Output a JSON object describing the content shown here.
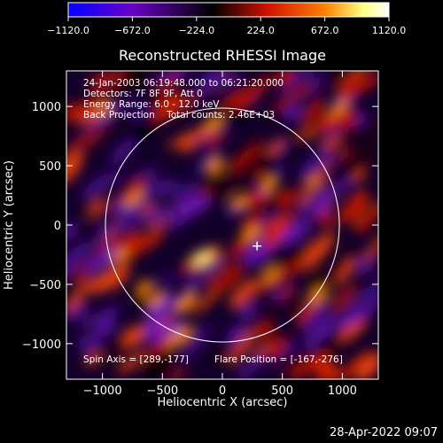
{
  "chart_data": {
    "type": "heatmap",
    "title": "Reconstructed RHESSI Image",
    "xlabel": "Heliocentric X (arcsec)",
    "ylabel": "Heliocentric Y (arcsec)",
    "xlim": [
      -1300,
      1300
    ],
    "ylim": [
      -1300,
      1300
    ],
    "x_ticks": [
      -1000,
      -500,
      0,
      500,
      1000
    ],
    "y_ticks": [
      -1000,
      -500,
      0,
      500,
      1000
    ],
    "x_tick_labels": [
      "−1000",
      "−500",
      "0",
      "500",
      "1000"
    ],
    "y_tick_labels": [
      "−1000",
      "−500",
      "0",
      "500",
      "1000"
    ],
    "colorbar": {
      "range": [
        -1120,
        1120
      ],
      "ticks": [
        -1120,
        -672,
        -224,
        224,
        672,
        1120
      ],
      "tick_labels": [
        "−1120.0",
        "−672.0",
        "−224.0",
        "224.0",
        "672.0",
        "1120.0"
      ],
      "colors": [
        "#0000ff",
        "#6a00c8",
        "#000000",
        "#d01000",
        "#ff8000",
        "#ffff80",
        "#ffffff"
      ]
    },
    "annotations": [
      "24-Jan-2003 06:19:48.000 to 06:21:20.000",
      "Detectors: 7F 8F 9F, Att 0",
      "Energy Range: 6.0 - 12.0 keV",
      "Back Projection    Total counts: 2.46E+03"
    ],
    "spin_axis_text": "Spin Axis = [289,-177]",
    "flare_position_text": "Flare Position = [-167,-276]",
    "spin_axis": [
      289,
      -177
    ],
    "flare_position": [
      -167,
      -276
    ],
    "solar_limb_radius": 975,
    "grid": false
  },
  "footer": {
    "timestamp": "28-Apr-2022 09:07"
  }
}
